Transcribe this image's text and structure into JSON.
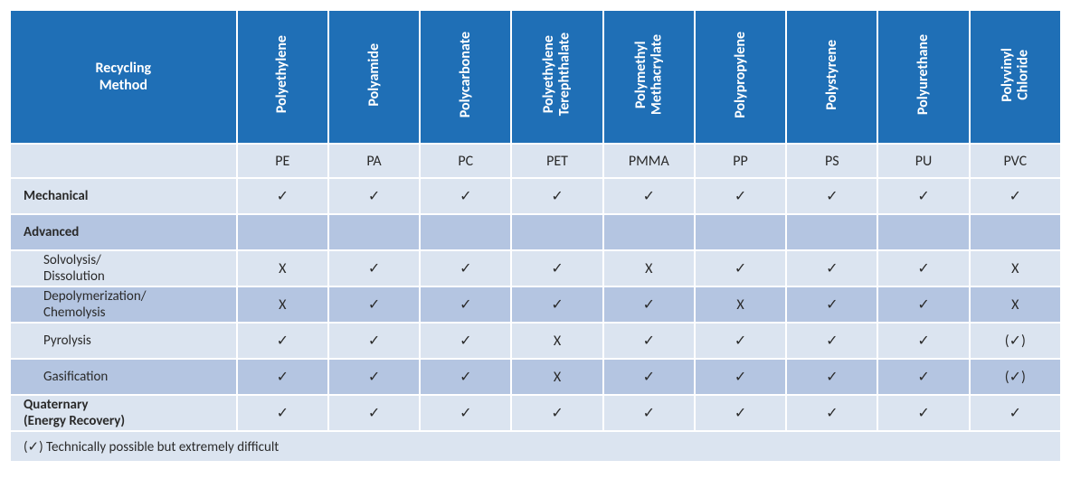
{
  "type": "table",
  "colors": {
    "header_bg": "#1f6fb6",
    "header_fg": "#ffffff",
    "abbr_row_bg": "#dbe4f0",
    "row_light_bg": "#dbe4f0",
    "row_dark_bg": "#b4c5e1",
    "footnote_bg": "#dbe4f0",
    "border": "#ffffff",
    "text": "#2a2a2a"
  },
  "fonts": {
    "family": "Calibri",
    "header_size_pt": 12,
    "body_size_pt": 11
  },
  "header": {
    "method_label": "Recycling\nMethod",
    "materials": [
      {
        "name": "Polyethylene",
        "abbr": "PE"
      },
      {
        "name": "Polyamide",
        "abbr": "PA"
      },
      {
        "name": "Polycarbonate",
        "abbr": "PC"
      },
      {
        "name": "Polyethylene Terephthalate",
        "abbr": "PET"
      },
      {
        "name": "Polymethyl Methacrylate",
        "abbr": "PMMA"
      },
      {
        "name": "Polypropylene",
        "abbr": "PP"
      },
      {
        "name": "Polystyrene",
        "abbr": "PS"
      },
      {
        "name": "Polyurethane",
        "abbr": "PU"
      },
      {
        "name": "Polyvinyl Chloride",
        "abbr": "PVC"
      }
    ]
  },
  "symbols": {
    "yes": "✓",
    "no": "X",
    "conditional": "(✓)"
  },
  "rows": [
    {
      "label": "Mechanical",
      "bold": true,
      "indent": false,
      "shade": "light",
      "cells": [
        "yes",
        "yes",
        "yes",
        "yes",
        "yes",
        "yes",
        "yes",
        "yes",
        "yes"
      ]
    },
    {
      "label": "Advanced",
      "bold": true,
      "indent": false,
      "shade": "dark",
      "cells": [
        "",
        "",
        "",
        "",
        "",
        "",
        "",
        "",
        ""
      ]
    },
    {
      "label": "Solvolysis/\nDissolution",
      "bold": false,
      "indent": true,
      "shade": "light",
      "cells": [
        "no",
        "yes",
        "yes",
        "yes",
        "no",
        "yes",
        "yes",
        "yes",
        "no"
      ]
    },
    {
      "label": "Depolymerization/\nChemolysis",
      "bold": false,
      "indent": true,
      "shade": "dark",
      "cells": [
        "no",
        "yes",
        "yes",
        "yes",
        "yes",
        "no",
        "yes",
        "yes",
        "no"
      ]
    },
    {
      "label": "Pyrolysis",
      "bold": false,
      "indent": true,
      "shade": "light",
      "cells": [
        "yes",
        "yes",
        "yes",
        "no",
        "yes",
        "yes",
        "yes",
        "yes",
        "conditional"
      ]
    },
    {
      "label": "Gasification",
      "bold": false,
      "indent": true,
      "shade": "dark",
      "cells": [
        "yes",
        "yes",
        "yes",
        "no",
        "yes",
        "yes",
        "yes",
        "yes",
        "conditional"
      ]
    },
    {
      "label": "Quaternary\n(Energy Recovery)",
      "bold": true,
      "indent": false,
      "shade": "light",
      "cells": [
        "yes",
        "yes",
        "yes",
        "yes",
        "yes",
        "yes",
        "yes",
        "yes",
        "yes"
      ]
    }
  ],
  "footnote": "(✓) Technically possible but extremely difficult"
}
